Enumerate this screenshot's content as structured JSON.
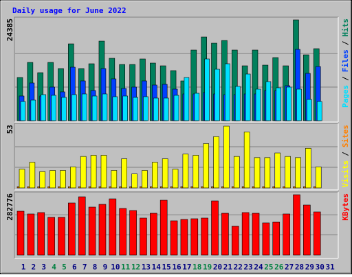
{
  "chart_data": [
    {
      "type": "bar",
      "title": "Daily usage for June 2022",
      "legend_separator": "/",
      "ylim": [
        0,
        24385
      ],
      "yticks": [
        24385
      ],
      "series": [
        {
          "name": "Hits",
          "color": "#00805c",
          "values": [
            10451,
            14100,
            11612,
            14100,
            12607,
            18579,
            12607,
            13769,
            19243,
            15096,
            13603,
            13603,
            14930,
            13934,
            13271,
            12110,
            9621,
            17086,
            20238,
            18745,
            19409,
            17086,
            13271,
            17086,
            13437,
            15262,
            13271,
            24385,
            15925,
            17418,
            null
          ]
        },
        {
          "name": "Files",
          "color": "#0040ff",
          "values": [
            5972,
            9124,
            5972,
            8129,
            6968,
            12940,
            9622,
            7300,
            12608,
            10120,
            7797,
            8129,
            9622,
            8627,
            8793,
            7631,
            6470,
            6470,
            6802,
            6470,
            6304,
            6304,
            6470,
            6470,
            7300,
            7300,
            8461,
            17254,
            11447,
            13106,
            null
          ]
        },
        {
          "name": "Pages",
          "color": "#00e0ff",
          "values": [
            4645,
            4977,
            6304,
            6138,
            5641,
            6304,
            6470,
            5972,
            6470,
            5807,
            5972,
            5641,
            5807,
            5475,
            5475,
            6138,
            10452,
            6636,
            14931,
            12443,
            13770,
            8295,
            11281,
            7631,
            9456,
            7963,
            8129,
            7631,
            5143,
            4645,
            null
          ]
        }
      ]
    },
    {
      "type": "bar",
      "legend_separator": "/",
      "ylim": [
        0,
        53
      ],
      "yticks": [
        53
      ],
      "series": [
        {
          "name": "Sites",
          "color": "#ff8000",
          "values": [
            1,
            1,
            1,
            1,
            1,
            1,
            1,
            1,
            1,
            1,
            1,
            1,
            1,
            1,
            1,
            1,
            1,
            1,
            1,
            1,
            1,
            1,
            1,
            1,
            1,
            1,
            1,
            1,
            1,
            1,
            null
          ]
        },
        {
          "name": "Visits",
          "color": "#ffff00",
          "values": [
            16,
            22,
            14,
            15,
            15,
            18,
            27,
            28,
            28,
            15,
            25,
            12,
            15,
            22,
            25,
            16,
            29,
            28,
            38,
            44,
            53,
            27,
            48,
            26,
            26,
            30,
            27,
            26,
            34,
            18,
            null
          ]
        }
      ]
    },
    {
      "type": "bar",
      "ylim": [
        0,
        282776
      ],
      "yticks": [
        282776
      ],
      "categories": [
        "1",
        "2",
        "3",
        "4",
        "5",
        "6",
        "7",
        "8",
        "9",
        "10",
        "11",
        "12",
        "13",
        "14",
        "15",
        "16",
        "17",
        "18",
        "19",
        "20",
        "21",
        "22",
        "23",
        "24",
        "25",
        "26",
        "27",
        "28",
        "29",
        "30",
        "31"
      ],
      "category_colors": [
        "#000080",
        "#000080",
        "#000080",
        "#008040",
        "#008040",
        "#000080",
        "#000080",
        "#000080",
        "#000080",
        "#000080",
        "#008040",
        "#008040",
        "#000080",
        "#000080",
        "#000080",
        "#000080",
        "#000080",
        "#008040",
        "#008040",
        "#000080",
        "#000080",
        "#000080",
        "#000080",
        "#000080",
        "#008040",
        "#008040",
        "#000080",
        "#000080",
        "#000080",
        "#000080",
        "#000080"
      ],
      "series": [
        {
          "name": "KBytes",
          "color": "#ff0000",
          "values": [
            205632,
            192780,
            199206,
            176715,
            176715,
            244188,
            273105,
            224910,
            237762,
            263466,
            218484,
            208845,
            173502,
            195993,
            257040,
            160650,
            167076,
            170289,
            173502,
            253827,
            195993,
            134946,
            199206,
            195993,
            151011,
            154224,
            192780,
            282776,
            234549,
            202419,
            null
          ]
        }
      ]
    }
  ]
}
